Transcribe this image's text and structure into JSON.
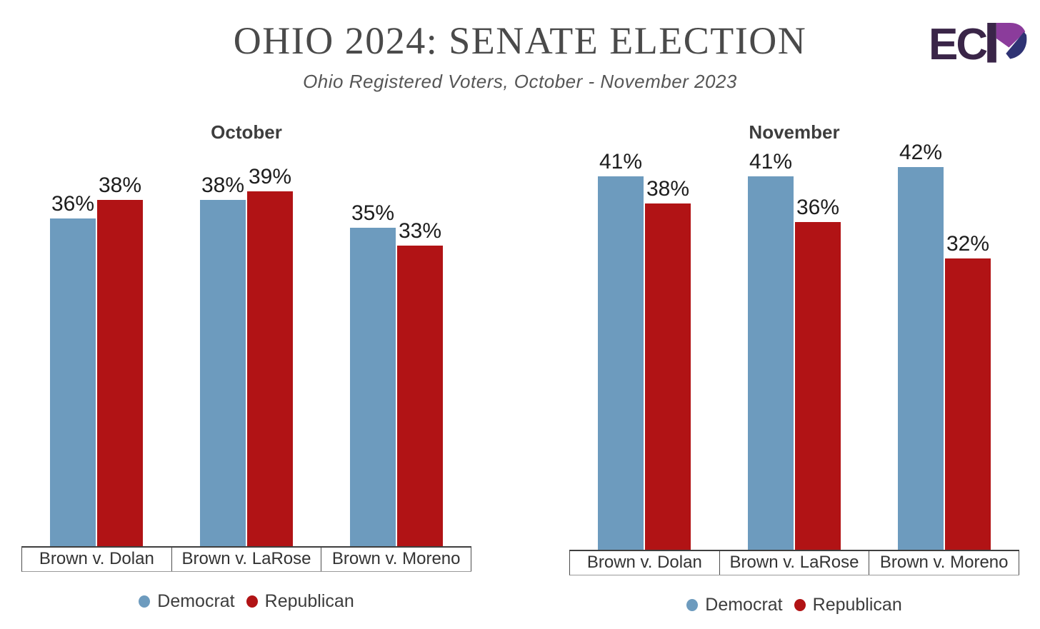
{
  "page": {
    "title": "OHIO 2024: SENATE ELECTION",
    "subtitle": "Ohio Registered Voters, October - November 2023"
  },
  "logo": {
    "text": "EC",
    "letter_p": "stylized-P",
    "colors": {
      "dark": "#3A2548",
      "purple": "#8B3C9B",
      "indigo": "#2F3374"
    }
  },
  "colors": {
    "democrat": "#6D9BBE",
    "republican": "#B11315",
    "axis_line": "#3f3f3f",
    "title_text": "#4a4a4a"
  },
  "chart_data": [
    {
      "type": "bar",
      "title": "October",
      "categories": [
        "Brown v. Dolan",
        "Brown v. LaRose",
        "Brown v. Moreno"
      ],
      "series": [
        {
          "name": "Democrat",
          "color": "#6D9BBE",
          "values": [
            36,
            38,
            35
          ]
        },
        {
          "name": "Republican",
          "color": "#B11315",
          "values": [
            38,
            39,
            33
          ]
        }
      ],
      "value_suffix": "%",
      "value_labels": [
        "36%",
        "38%",
        "38%",
        "39%",
        "35%",
        "33%"
      ],
      "ylim": [
        0,
        47
      ],
      "grid": false,
      "legend_position": "bottom"
    },
    {
      "type": "bar",
      "title": "November",
      "categories": [
        "Brown v. Dolan",
        "Brown v. LaRose",
        "Brown v. Moreno"
      ],
      "series": [
        {
          "name": "Democrat",
          "color": "#6D9BBE",
          "values": [
            41,
            41,
            42
          ]
        },
        {
          "name": "Republican",
          "color": "#B11315",
          "values": [
            38,
            36,
            32
          ]
        }
      ],
      "value_suffix": "%",
      "value_labels": [
        "41%",
        "38%",
        "41%",
        "36%",
        "42%",
        "32%"
      ],
      "ylim": [
        0,
        47
      ],
      "grid": false,
      "legend_position": "bottom"
    }
  ]
}
